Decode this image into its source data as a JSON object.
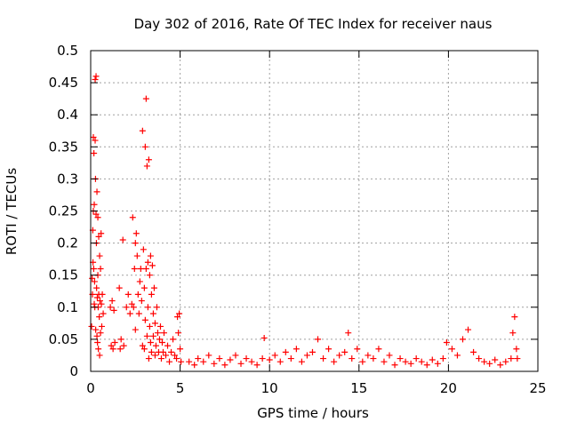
{
  "chart_data": {
    "type": "scatter",
    "title": "Day 302 of 2016, Rate Of TEC Index for receiver naus",
    "xlabel": "GPS time / hours",
    "ylabel": "ROTI / TECUs",
    "xlim": [
      0,
      25
    ],
    "ylim": [
      0,
      0.5
    ],
    "grid": true,
    "marker": "+",
    "color": "#ff0000",
    "x_ticks": [
      0,
      5,
      10,
      15,
      20,
      25
    ],
    "x_tick_labels": [
      "0",
      "5",
      "10",
      "15",
      "20",
      "25"
    ],
    "y_ticks": [
      0,
      0.05,
      0.1,
      0.15,
      0.2,
      0.25,
      0.3,
      0.35,
      0.4,
      0.45,
      0.5
    ],
    "y_tick_labels": [
      "0",
      "0.05",
      "0.1",
      "0.15",
      "0.2",
      "0.25",
      "0.3",
      "0.35",
      "0.4",
      "0.45",
      "0.5"
    ],
    "series": [
      {
        "name": "ROTI",
        "points": [
          [
            0.05,
            0.07
          ],
          [
            0.08,
            0.145
          ],
          [
            0.1,
            0.12
          ],
          [
            0.12,
            0.22
          ],
          [
            0.13,
            0.17
          ],
          [
            0.15,
            0.25
          ],
          [
            0.15,
            0.365
          ],
          [
            0.17,
            0.16
          ],
          [
            0.18,
            0.34
          ],
          [
            0.2,
            0.26
          ],
          [
            0.2,
            0.105
          ],
          [
            0.22,
            0.14
          ],
          [
            0.23,
            0.1
          ],
          [
            0.25,
            0.36
          ],
          [
            0.25,
            0.455
          ],
          [
            0.27,
            0.3
          ],
          [
            0.28,
            0.065
          ],
          [
            0.3,
            0.245
          ],
          [
            0.3,
            0.46
          ],
          [
            0.32,
            0.2
          ],
          [
            0.33,
            0.13
          ],
          [
            0.35,
            0.055
          ],
          [
            0.35,
            0.28
          ],
          [
            0.37,
            0.115
          ],
          [
            0.38,
            0.045
          ],
          [
            0.4,
            0.15
          ],
          [
            0.4,
            0.24
          ],
          [
            0.42,
            0.1
          ],
          [
            0.43,
            0.035
          ],
          [
            0.45,
            0.12
          ],
          [
            0.45,
            0.21
          ],
          [
            0.48,
            0.085
          ],
          [
            0.5,
            0.18
          ],
          [
            0.5,
            0.025
          ],
          [
            0.52,
            0.11
          ],
          [
            0.55,
            0.16
          ],
          [
            0.55,
            0.06
          ],
          [
            0.58,
            0.215
          ],
          [
            0.6,
            0.105
          ],
          [
            0.62,
            0.07
          ],
          [
            0.65,
            0.12
          ],
          [
            0.7,
            0.09
          ],
          [
            1.1,
            0.1
          ],
          [
            1.15,
            0.04
          ],
          [
            1.2,
            0.11
          ],
          [
            1.25,
            0.035
          ],
          [
            1.3,
            0.095
          ],
          [
            1.35,
            0.045
          ],
          [
            1.6,
            0.13
          ],
          [
            1.65,
            0.035
          ],
          [
            1.7,
            0.05
          ],
          [
            1.8,
            0.205
          ],
          [
            1.85,
            0.04
          ],
          [
            2.0,
            0.1
          ],
          [
            2.1,
            0.12
          ],
          [
            2.2,
            0.09
          ],
          [
            2.3,
            0.105
          ],
          [
            2.35,
            0.24
          ],
          [
            2.4,
            0.1
          ],
          [
            2.45,
            0.16
          ],
          [
            2.5,
            0.2
          ],
          [
            2.5,
            0.065
          ],
          [
            2.55,
            0.215
          ],
          [
            2.6,
            0.18
          ],
          [
            2.65,
            0.12
          ],
          [
            2.7,
            0.09
          ],
          [
            2.75,
            0.14
          ],
          [
            2.8,
            0.16
          ],
          [
            2.85,
            0.11
          ],
          [
            2.9,
            0.375
          ],
          [
            2.9,
            0.04
          ],
          [
            2.95,
            0.19
          ],
          [
            3.0,
            0.13
          ],
          [
            3.0,
            0.035
          ],
          [
            3.05,
            0.35
          ],
          [
            3.05,
            0.08
          ],
          [
            3.1,
            0.425
          ],
          [
            3.1,
            0.16
          ],
          [
            3.15,
            0.32
          ],
          [
            3.15,
            0.055
          ],
          [
            3.2,
            0.17
          ],
          [
            3.2,
            0.1
          ],
          [
            3.25,
            0.33
          ],
          [
            3.25,
            0.02
          ],
          [
            3.3,
            0.15
          ],
          [
            3.3,
            0.07
          ],
          [
            3.35,
            0.18
          ],
          [
            3.35,
            0.045
          ],
          [
            3.4,
            0.12
          ],
          [
            3.4,
            0.03
          ],
          [
            3.45,
            0.165
          ],
          [
            3.5,
            0.09
          ],
          [
            3.5,
            0.055
          ],
          [
            3.55,
            0.13
          ],
          [
            3.6,
            0.075
          ],
          [
            3.6,
            0.025
          ],
          [
            3.65,
            0.04
          ],
          [
            3.7,
            0.1
          ],
          [
            3.75,
            0.06
          ],
          [
            3.8,
            0.03
          ],
          [
            3.85,
            0.05
          ],
          [
            3.9,
            0.07
          ],
          [
            3.95,
            0.02
          ],
          [
            4.0,
            0.045
          ],
          [
            4.05,
            0.03
          ],
          [
            4.1,
            0.06
          ],
          [
            4.2,
            0.025
          ],
          [
            4.3,
            0.04
          ],
          [
            4.4,
            0.015
          ],
          [
            4.5,
            0.03
          ],
          [
            4.6,
            0.05
          ],
          [
            4.7,
            0.025
          ],
          [
            4.8,
            0.02
          ],
          [
            4.85,
            0.085
          ],
          [
            4.9,
            0.06
          ],
          [
            4.95,
            0.09
          ],
          [
            5.0,
            0.035
          ],
          [
            5.05,
            0.015
          ],
          [
            5.5,
            0.015
          ],
          [
            5.8,
            0.01
          ],
          [
            6.0,
            0.02
          ],
          [
            6.3,
            0.015
          ],
          [
            6.6,
            0.025
          ],
          [
            6.9,
            0.012
          ],
          [
            7.2,
            0.02
          ],
          [
            7.5,
            0.01
          ],
          [
            7.8,
            0.018
          ],
          [
            8.1,
            0.025
          ],
          [
            8.4,
            0.012
          ],
          [
            8.7,
            0.02
          ],
          [
            9.0,
            0.015
          ],
          [
            9.3,
            0.01
          ],
          [
            9.6,
            0.02
          ],
          [
            9.7,
            0.052
          ],
          [
            10.0,
            0.018
          ],
          [
            10.3,
            0.025
          ],
          [
            10.6,
            0.015
          ],
          [
            10.9,
            0.03
          ],
          [
            11.2,
            0.02
          ],
          [
            11.5,
            0.035
          ],
          [
            11.8,
            0.015
          ],
          [
            12.1,
            0.025
          ],
          [
            12.4,
            0.03
          ],
          [
            12.7,
            0.05
          ],
          [
            13.0,
            0.02
          ],
          [
            13.3,
            0.035
          ],
          [
            13.6,
            0.015
          ],
          [
            13.9,
            0.025
          ],
          [
            14.2,
            0.03
          ],
          [
            14.4,
            0.06
          ],
          [
            14.6,
            0.02
          ],
          [
            14.9,
            0.035
          ],
          [
            15.2,
            0.015
          ],
          [
            15.5,
            0.025
          ],
          [
            15.8,
            0.02
          ],
          [
            16.1,
            0.035
          ],
          [
            16.4,
            0.015
          ],
          [
            16.7,
            0.025
          ],
          [
            17.0,
            0.01
          ],
          [
            17.3,
            0.02
          ],
          [
            17.6,
            0.015
          ],
          [
            17.9,
            0.012
          ],
          [
            18.2,
            0.02
          ],
          [
            18.5,
            0.015
          ],
          [
            18.8,
            0.01
          ],
          [
            19.1,
            0.018
          ],
          [
            19.4,
            0.012
          ],
          [
            19.7,
            0.02
          ],
          [
            19.9,
            0.045
          ],
          [
            20.2,
            0.035
          ],
          [
            20.5,
            0.025
          ],
          [
            20.8,
            0.05
          ],
          [
            21.1,
            0.065
          ],
          [
            21.4,
            0.03
          ],
          [
            21.7,
            0.02
          ],
          [
            22.0,
            0.015
          ],
          [
            22.3,
            0.012
          ],
          [
            22.6,
            0.018
          ],
          [
            22.9,
            0.01
          ],
          [
            23.2,
            0.015
          ],
          [
            23.5,
            0.02
          ],
          [
            23.6,
            0.06
          ],
          [
            23.7,
            0.085
          ],
          [
            23.8,
            0.035
          ],
          [
            23.85,
            0.02
          ]
        ]
      }
    ]
  }
}
